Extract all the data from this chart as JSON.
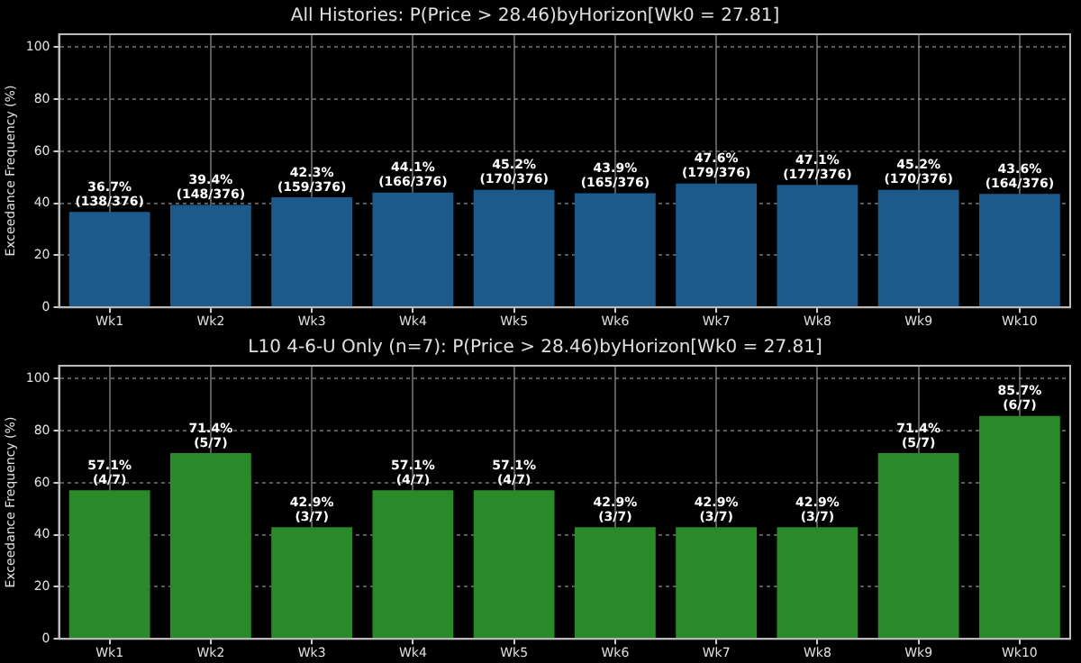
{
  "chart_data": [
    {
      "type": "bar",
      "title": "All Histories: P(Price > 28.46)byHorizon[Wk0 = 27.81]",
      "ylabel": "Exceedance Frequency (%)",
      "categories": [
        "Wk1",
        "Wk2",
        "Wk3",
        "Wk4",
        "Wk5",
        "Wk6",
        "Wk7",
        "Wk8",
        "Wk9",
        "Wk10"
      ],
      "series": [
        {
          "color": "#1b5a8a",
          "values": [
            36.7,
            39.4,
            42.3,
            44.1,
            45.2,
            43.9,
            47.6,
            47.1,
            45.2,
            43.6
          ],
          "value_labels": [
            "36.7%\n(138/376)",
            "39.4%\n(148/376)",
            "42.3%\n(159/376)",
            "44.1%\n(166/376)",
            "45.2%\n(170/376)",
            "43.9%\n(165/376)",
            "47.6%\n(179/376)",
            "47.1%\n(177/376)",
            "45.2%\n(170/376)",
            "43.6%\n(164/376)"
          ]
        }
      ],
      "ylim": [
        0,
        105
      ],
      "yticks": [
        0,
        20,
        40,
        60,
        80,
        100
      ],
      "grid": true,
      "legend": false
    },
    {
      "type": "bar",
      "title": "L10 4-6-U Only (n=7): P(Price > 28.46)byHorizon[Wk0 = 27.81]",
      "ylabel": "Exceedance Frequency (%)",
      "categories": [
        "Wk1",
        "Wk2",
        "Wk3",
        "Wk4",
        "Wk5",
        "Wk6",
        "Wk7",
        "Wk8",
        "Wk9",
        "Wk10"
      ],
      "series": [
        {
          "color": "#2a8a2a",
          "values": [
            57.1,
            71.4,
            42.9,
            57.1,
            57.1,
            42.9,
            42.9,
            42.9,
            71.4,
            85.7
          ],
          "value_labels": [
            "57.1%\n(4/7)",
            "71.4%\n(5/7)",
            "42.9%\n(3/7)",
            "57.1%\n(4/7)",
            "57.1%\n(4/7)",
            "42.9%\n(3/7)",
            "42.9%\n(3/7)",
            "42.9%\n(3/7)",
            "71.4%\n(5/7)",
            "85.7%\n(6/7)"
          ]
        }
      ],
      "ylim": [
        0,
        105
      ],
      "yticks": [
        0,
        20,
        40,
        60,
        80,
        100
      ],
      "grid": true,
      "legend": false
    }
  ]
}
